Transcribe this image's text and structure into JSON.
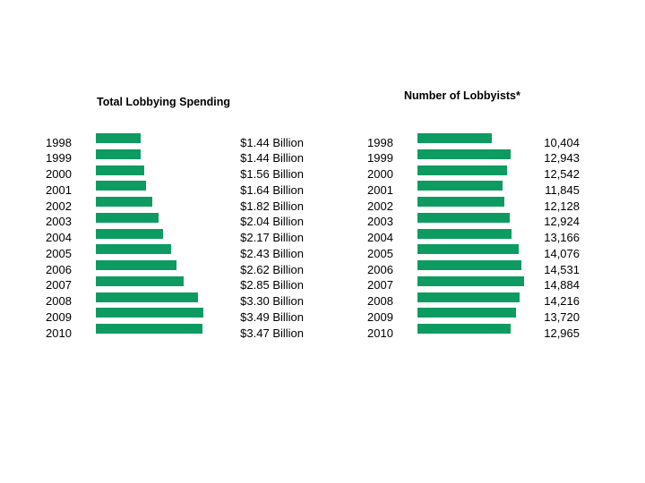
{
  "chart_data": [
    {
      "type": "bar",
      "orientation": "horizontal",
      "title": "Total Lobbying Spending",
      "categories": [
        "1998",
        "1999",
        "2000",
        "2001",
        "2002",
        "2003",
        "2004",
        "2005",
        "2006",
        "2007",
        "2008",
        "2009",
        "2010"
      ],
      "values": [
        1.44,
        1.44,
        1.56,
        1.64,
        1.82,
        2.04,
        2.17,
        2.43,
        2.62,
        2.85,
        3.3,
        3.49,
        3.47
      ],
      "value_labels": [
        "$1.44 Billion",
        "$1.44 Billion",
        "$1.56 Billion",
        "$1.64 Billion",
        "$1.82 Billion",
        "$2.04 Billion",
        "$2.17 Billion",
        "$2.43 Billion",
        "$2.62 Billion",
        "$2.85 Billion",
        "$3.30 Billion",
        "$3.49 Billion",
        "$3.47 Billion"
      ],
      "color": "#0e9b62",
      "grid": false
    },
    {
      "type": "bar",
      "orientation": "horizontal",
      "title": "Number of Lobbyists*",
      "categories": [
        "1998",
        "1999",
        "2000",
        "2001",
        "2002",
        "2003",
        "2004",
        "2005",
        "2006",
        "2007",
        "2008",
        "2009",
        "2010"
      ],
      "values": [
        10404,
        12943,
        12542,
        11845,
        12128,
        12924,
        13166,
        14076,
        14531,
        14884,
        14216,
        13720,
        12965
      ],
      "value_labels": [
        "10,404",
        "12,943",
        "12,542",
        "11,845",
        "12,128",
        "12,924",
        "13,166",
        "14,076",
        "14,531",
        "14,884",
        "14,216",
        "13,720",
        "12,965"
      ],
      "color": "#0e9b62",
      "grid": false
    }
  ]
}
